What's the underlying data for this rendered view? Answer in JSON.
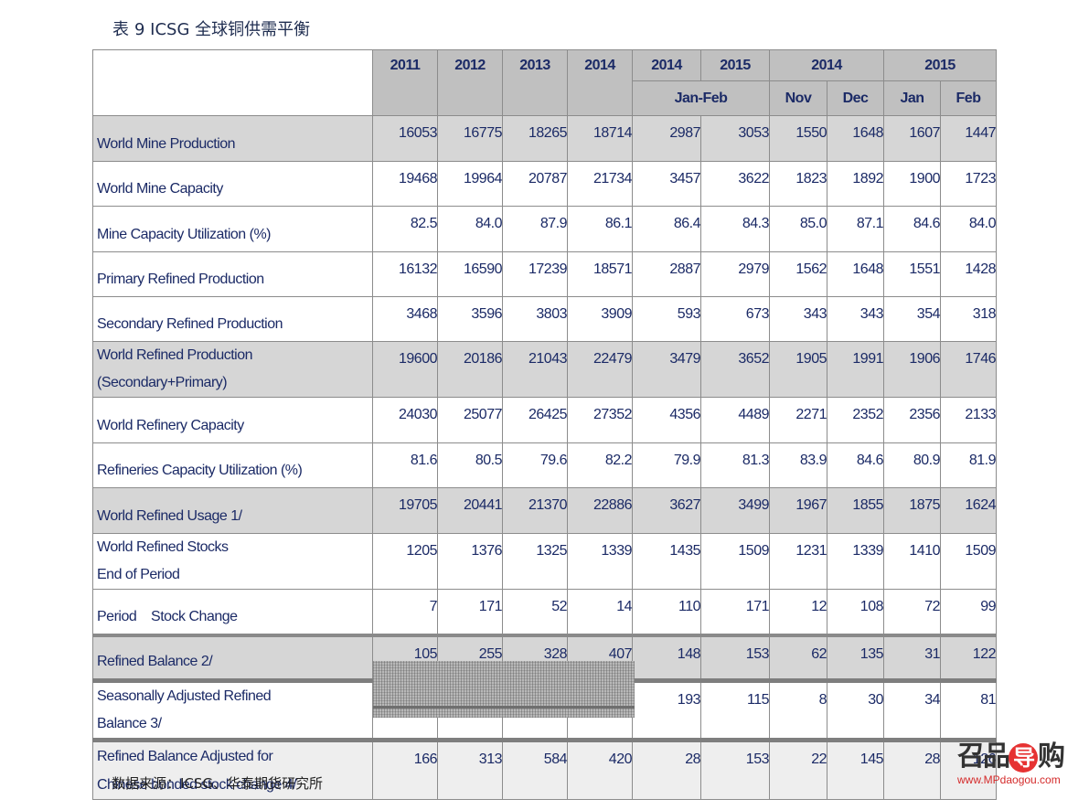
{
  "title": {
    "prefix": "表",
    "number": "9 ICSG 全球铜供需平衡"
  },
  "header": {
    "row1": [
      "2011",
      "2012",
      "2013",
      "2014",
      "2014",
      "2015",
      "2014",
      "2015"
    ],
    "row2": [
      "Jan-Feb",
      "Nov",
      "Dec",
      "Jan",
      "Feb"
    ]
  },
  "rows": [
    {
      "label": [
        "World Mine Production"
      ],
      "values": [
        "16053",
        "16775",
        "18265",
        "18714",
        "2987",
        "3053",
        "1550",
        "1648",
        "1607",
        "1447"
      ]
    },
    {
      "label": [
        "World Mine Capacity"
      ],
      "values": [
        "19468",
        "19964",
        "20787",
        "21734",
        "3457",
        "3622",
        "1823",
        "1892",
        "1900",
        "1723"
      ]
    },
    {
      "label": [
        "Mine Capacity Utilization (%)"
      ],
      "values": [
        "82.5",
        "84.0",
        "87.9",
        "86.1",
        "86.4",
        "84.3",
        "85.0",
        "87.1",
        "84.6",
        "84.0"
      ]
    },
    {
      "label": [
        "Primary Refined Production"
      ],
      "values": [
        "16132",
        "16590",
        "17239",
        "18571",
        "2887",
        "2979",
        "1562",
        "1648",
        "1551",
        "1428"
      ]
    },
    {
      "label": [
        "Secondary Refined Production"
      ],
      "values": [
        "3468",
        "3596",
        "3803",
        "3909",
        "593",
        "673",
        "343",
        "343",
        "354",
        "318"
      ]
    },
    {
      "label": [
        "World Refined Production",
        "(Secondary+Primary)"
      ],
      "values": [
        "19600",
        "20186",
        "21043",
        "22479",
        "3479",
        "3652",
        "1905",
        "1991",
        "1906",
        "1746"
      ]
    },
    {
      "label": [
        "World Refinery Capacity"
      ],
      "values": [
        "24030",
        "25077",
        "26425",
        "27352",
        "4356",
        "4489",
        "2271",
        "2352",
        "2356",
        "2133"
      ]
    },
    {
      "label": [
        "Refineries Capacity Utilization (%)"
      ],
      "values": [
        "81.6",
        "80.5",
        "79.6",
        "82.2",
        "79.9",
        "81.3",
        "83.9",
        "84.6",
        "80.9",
        "81.9"
      ]
    },
    {
      "label": [
        "World Refined Usage 1/"
      ],
      "values": [
        "19705",
        "20441",
        "21370",
        "22886",
        "3627",
        "3499",
        "1967",
        "1855",
        "1875",
        "1624"
      ]
    },
    {
      "label": [
        "World Refined Stocks",
        "End of Period"
      ],
      "values": [
        "1205",
        "1376",
        "1325",
        "1339",
        "1435",
        "1509",
        "1231",
        "1339",
        "1410",
        "1509"
      ]
    },
    {
      "label": [
        "Period    Stock Change"
      ],
      "values": [
        "7",
        "171",
        "52",
        "14",
        "110",
        "171",
        "12",
        "108",
        "72",
        "99"
      ]
    },
    {
      "label": [
        "Refined Balance 2/"
      ],
      "values": [
        "105",
        "255",
        "328",
        "407",
        "148",
        "153",
        "62",
        "135",
        "31",
        "122"
      ]
    },
    {
      "label": [
        "Seasonally Adjusted Refined",
        "Balance 3/"
      ],
      "values": [
        "",
        "",
        "",
        "",
        "193",
        "115",
        "8",
        "30",
        "34",
        "81"
      ]
    },
    {
      "label": [
        "Refined Balance Adjusted for",
        "Chinese bonded stock change 4/"
      ],
      "values": [
        "166",
        "313",
        "584",
        "420",
        "28",
        "153",
        "22",
        "145",
        "28",
        "126"
      ]
    }
  ],
  "source": "数据来源：ICSG、华泰期货研究所",
  "watermark": {
    "logo_left": "召品",
    "logo_circle": "导",
    "logo_right": "购",
    "url": "www.MPdaogou.com"
  },
  "colors": {
    "text": "#1b2a66",
    "header_bg": "#c0c0c0",
    "shaded_row": "#d6d6d6",
    "border": "#8c8c8c"
  }
}
